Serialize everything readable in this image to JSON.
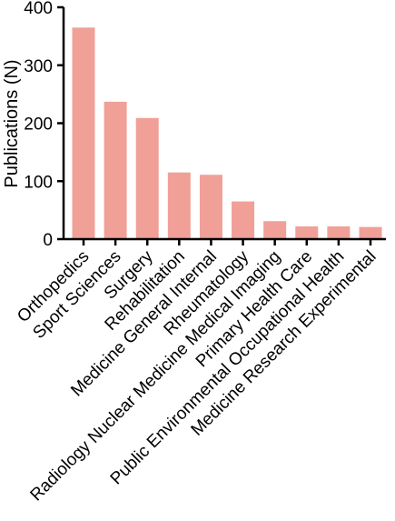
{
  "chart_data": {
    "type": "bar",
    "title": "",
    "xlabel": "",
    "ylabel": "Publications (N)",
    "ylim": [
      0,
      400
    ],
    "yticks": [
      0,
      100,
      200,
      300,
      400
    ],
    "categories": [
      "Orthopedics",
      "Sport Sciences",
      "Surgery",
      "Rehabilitation",
      "Medicine General Internal",
      "Rheumatology",
      "Radiology Nuclear Medicine Medical Imaging",
      "Primary Health Care",
      "Public Environmental Occupational Health",
      "Medicine Research Experimental"
    ],
    "values": [
      365,
      237,
      209,
      115,
      111,
      65,
      31,
      22,
      22,
      21
    ],
    "grid": false,
    "legend": "none",
    "bar_color": "#f0a097"
  }
}
